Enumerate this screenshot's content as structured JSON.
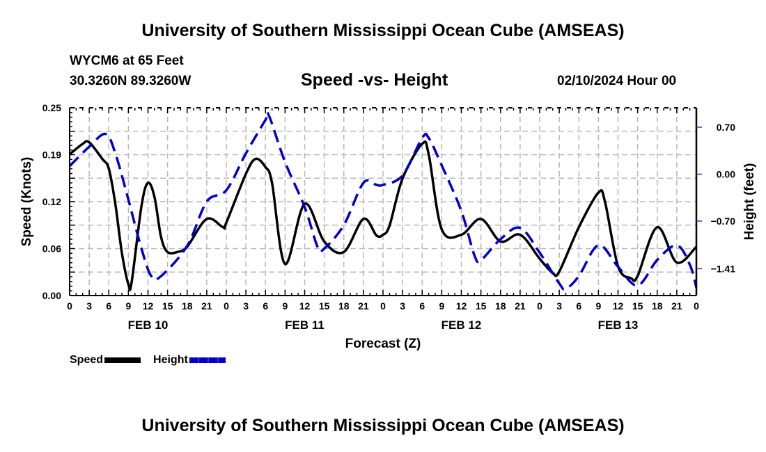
{
  "header": {
    "title": "University of Southern Mississippi Ocean Cube (AMSEAS)",
    "station": "WYCM6 at 65 Feet",
    "coordinates": "30.3260N  89.3260W",
    "subtitle": "Speed -vs- Height",
    "datetime": "02/10/2024 Hour 00"
  },
  "footer": {
    "title": "University of Southern Mississippi Ocean Cube (AMSEAS)"
  },
  "legend": {
    "items": [
      {
        "label": "Speed",
        "color": "#000000",
        "style": "solid"
      },
      {
        "label": "Height",
        "color": "#0000cc",
        "style": "dashed"
      }
    ]
  },
  "chart_data": {
    "type": "line",
    "title": "Speed -vs- Height",
    "xlabel": "Forecast (Z)",
    "ylabel": "Speed (Knots)",
    "y2label": "Height (feet)",
    "xlim": [
      0,
      96
    ],
    "ylim": [
      0,
      0.25
    ],
    "y2lim": [
      -1.81,
      0.99
    ],
    "grid": true,
    "legend_position": "bottom-left",
    "x_tick_values": [
      0,
      3,
      6,
      9,
      12,
      15,
      18,
      21,
      24,
      27,
      30,
      33,
      36,
      39,
      42,
      45,
      48,
      51,
      54,
      57,
      60,
      63,
      66,
      69,
      72,
      75,
      78,
      81,
      84,
      87,
      90,
      93,
      96
    ],
    "x_tick_labels": [
      "0",
      "3",
      "6",
      "9",
      "12",
      "15",
      "18",
      "21",
      "0",
      "3",
      "6",
      "9",
      "12",
      "15",
      "18",
      "21",
      "0",
      "3",
      "6",
      "9",
      "12",
      "15",
      "18",
      "21",
      "0",
      "3",
      "6",
      "9",
      "12",
      "15",
      "18",
      "21",
      "0"
    ],
    "day_labels": [
      {
        "label": "FEB 10",
        "at": 12
      },
      {
        "label": "FEB 11",
        "at": 36
      },
      {
        "label": "FEB 12",
        "at": 60
      },
      {
        "label": "FEB 13",
        "at": 84
      }
    ],
    "y_ticks": [
      {
        "value": 0.0,
        "label": "0.00"
      },
      {
        "value": 0.0625,
        "label": "0.06"
      },
      {
        "value": 0.125,
        "label": "0.12"
      },
      {
        "value": 0.1875,
        "label": "0.19"
      },
      {
        "value": 0.25,
        "label": "0.25"
      }
    ],
    "y2_ticks": [
      {
        "value": 0.7,
        "label": "0.70"
      },
      {
        "value": 0.0,
        "label": "0.00"
      },
      {
        "value": -0.7,
        "label": "−0.70"
      },
      {
        "value": -1.41,
        "label": "−1.41"
      }
    ],
    "series": [
      {
        "name": "Speed",
        "axis": "left",
        "color": "#000000",
        "style": "solid",
        "x": [
          0,
          2,
          3,
          5,
          6,
          7,
          8,
          9,
          9.5,
          11,
          12,
          13,
          14,
          15,
          16.5,
          18,
          21,
          23.5,
          24,
          27,
          28.5,
          30,
          31,
          33,
          36,
          39,
          42,
          45,
          47,
          48,
          49,
          51,
          54,
          55,
          57,
          60,
          63,
          66,
          69,
          72,
          74,
          75,
          78,
          81,
          82,
          84,
          86,
          87,
          90,
          93,
          96
        ],
        "values": [
          0.188,
          0.202,
          0.204,
          0.182,
          0.169,
          0.122,
          0.057,
          0.015,
          0.018,
          0.119,
          0.15,
          0.131,
          0.078,
          0.058,
          0.058,
          0.065,
          0.102,
          0.091,
          0.097,
          0.162,
          0.182,
          0.171,
          0.15,
          0.042,
          0.122,
          0.072,
          0.058,
          0.102,
          0.08,
          0.081,
          0.093,
          0.156,
          0.202,
          0.188,
          0.088,
          0.081,
          0.102,
          0.072,
          0.081,
          0.049,
          0.03,
          0.032,
          0.091,
          0.137,
          0.125,
          0.039,
          0.023,
          0.026,
          0.091,
          0.044,
          0.065
        ]
      },
      {
        "name": "Height",
        "axis": "right",
        "color": "#0000cc",
        "style": "dashed",
        "x": [
          0,
          3,
          5.5,
          7,
          9,
          11,
          12.5,
          14,
          18,
          21,
          24,
          27,
          30,
          30.5,
          33,
          36,
          38,
          39,
          42,
          45,
          47,
          48,
          51,
          54,
          55,
          57,
          60,
          62,
          63,
          66,
          69,
          72,
          75,
          76,
          78,
          81,
          84,
          87,
          90,
          93,
          95,
          96
        ],
        "values": [
          0.12,
          0.41,
          0.6,
          0.31,
          -0.38,
          -1.11,
          -1.52,
          -1.52,
          -1.07,
          -0.41,
          -0.24,
          0.31,
          0.81,
          0.88,
          0.18,
          -0.49,
          -1.09,
          -1.11,
          -0.76,
          -0.13,
          -0.16,
          -0.16,
          -0.02,
          0.54,
          0.54,
          0.13,
          -0.55,
          -1.21,
          -1.28,
          -0.97,
          -0.8,
          -1.17,
          -1.63,
          -1.71,
          -1.52,
          -1.06,
          -1.38,
          -1.66,
          -1.28,
          -1.06,
          -1.35,
          -1.69
        ]
      }
    ]
  }
}
